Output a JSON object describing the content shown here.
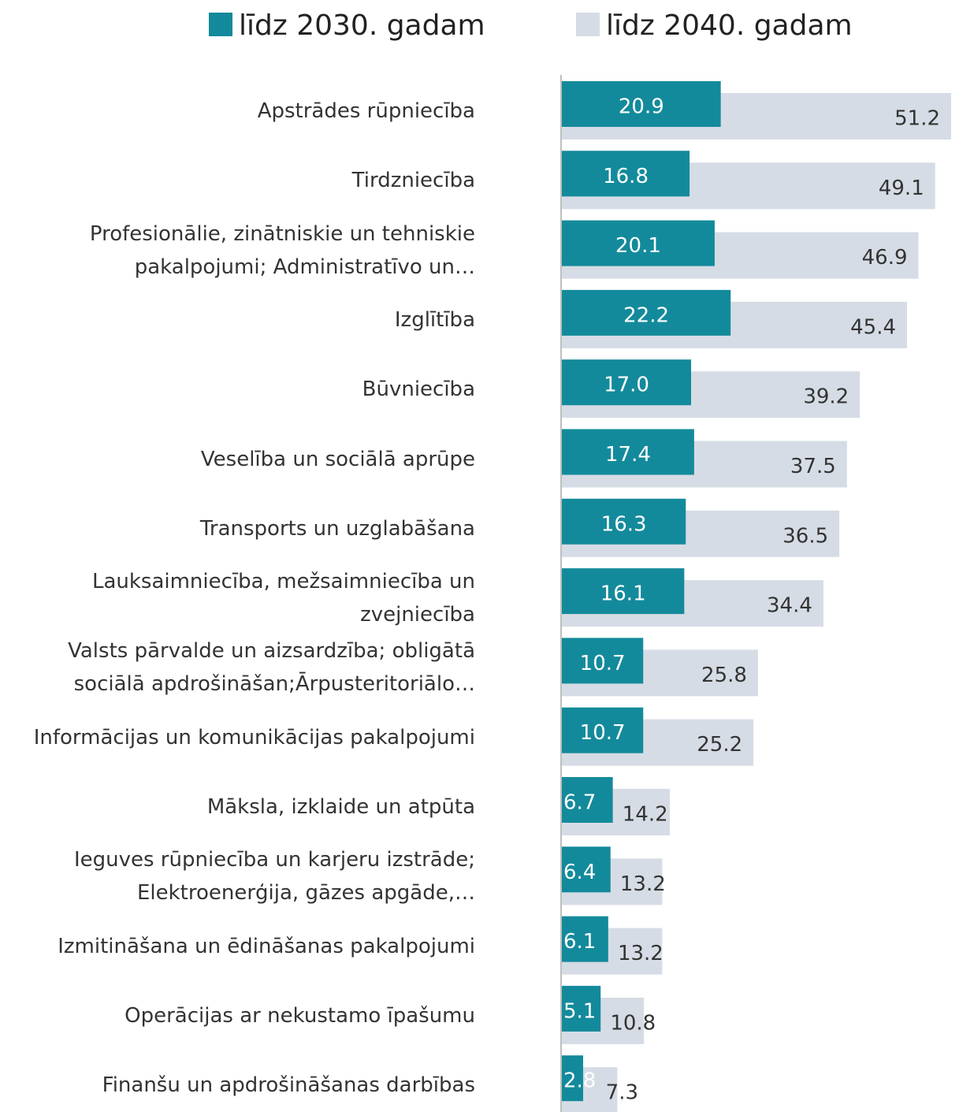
{
  "chart_data": {
    "type": "bar",
    "orientation": "horizontal",
    "categories": [
      "Apstrādes rūpniecība",
      "Tirdzniecība",
      "Profesionālie, zinātniskie un tehniskie pakalpojumi; Administratīvo un…",
      "Izglītība",
      "Būvniecība",
      "Veselība un sociālā aprūpe",
      "Transports un uzglabāšana",
      "Lauksaimniecība, mežsaimniecība un zvejniecība",
      "Valsts pārvalde un aizsardzība; obligātā sociālā apdrošināšan;Ārpusteritoriālo…",
      "Informācijas un komunikācijas pakalpojumi",
      "Māksla, izklaide un atpūta",
      "Ieguves rūpniecība un karjeru izstrāde; Elektroenerģija, gāzes apgāde,…",
      "Izmitināšana un ēdināšanas pakalpojumi",
      "Operācijas ar nekustamo īpašumu",
      "Finanšu un apdrošināšanas darbības"
    ],
    "series": [
      {
        "name": "līdz 2030. gadam",
        "color": "#138a9b",
        "values": [
          20.9,
          16.8,
          20.1,
          22.2,
          17.0,
          17.4,
          16.3,
          16.1,
          10.7,
          10.7,
          6.7,
          6.4,
          6.1,
          5.1,
          2.8
        ],
        "value_labels": [
          "20.9",
          "16.8",
          "20.1",
          "22.2",
          "17.0",
          "17.4",
          "16.3",
          "16.1",
          "10.7",
          "10.7",
          "6.7",
          "6.4",
          "6.1",
          "5.1",
          "2.8"
        ]
      },
      {
        "name": "līdz 2040. gadam",
        "color": "#d6dce5",
        "values": [
          51.2,
          49.1,
          46.9,
          45.4,
          39.2,
          37.5,
          36.5,
          34.4,
          25.8,
          25.2,
          14.2,
          13.2,
          13.2,
          10.8,
          7.3
        ],
        "value_labels": [
          "51.2",
          "49.1",
          "46.9",
          "45.4",
          "39.2",
          "37.5",
          "36.5",
          "34.4",
          "25.8",
          "25.2",
          "14.2",
          "13.2",
          "13.2",
          "10.8",
          "7.3"
        ]
      }
    ]
  }
}
